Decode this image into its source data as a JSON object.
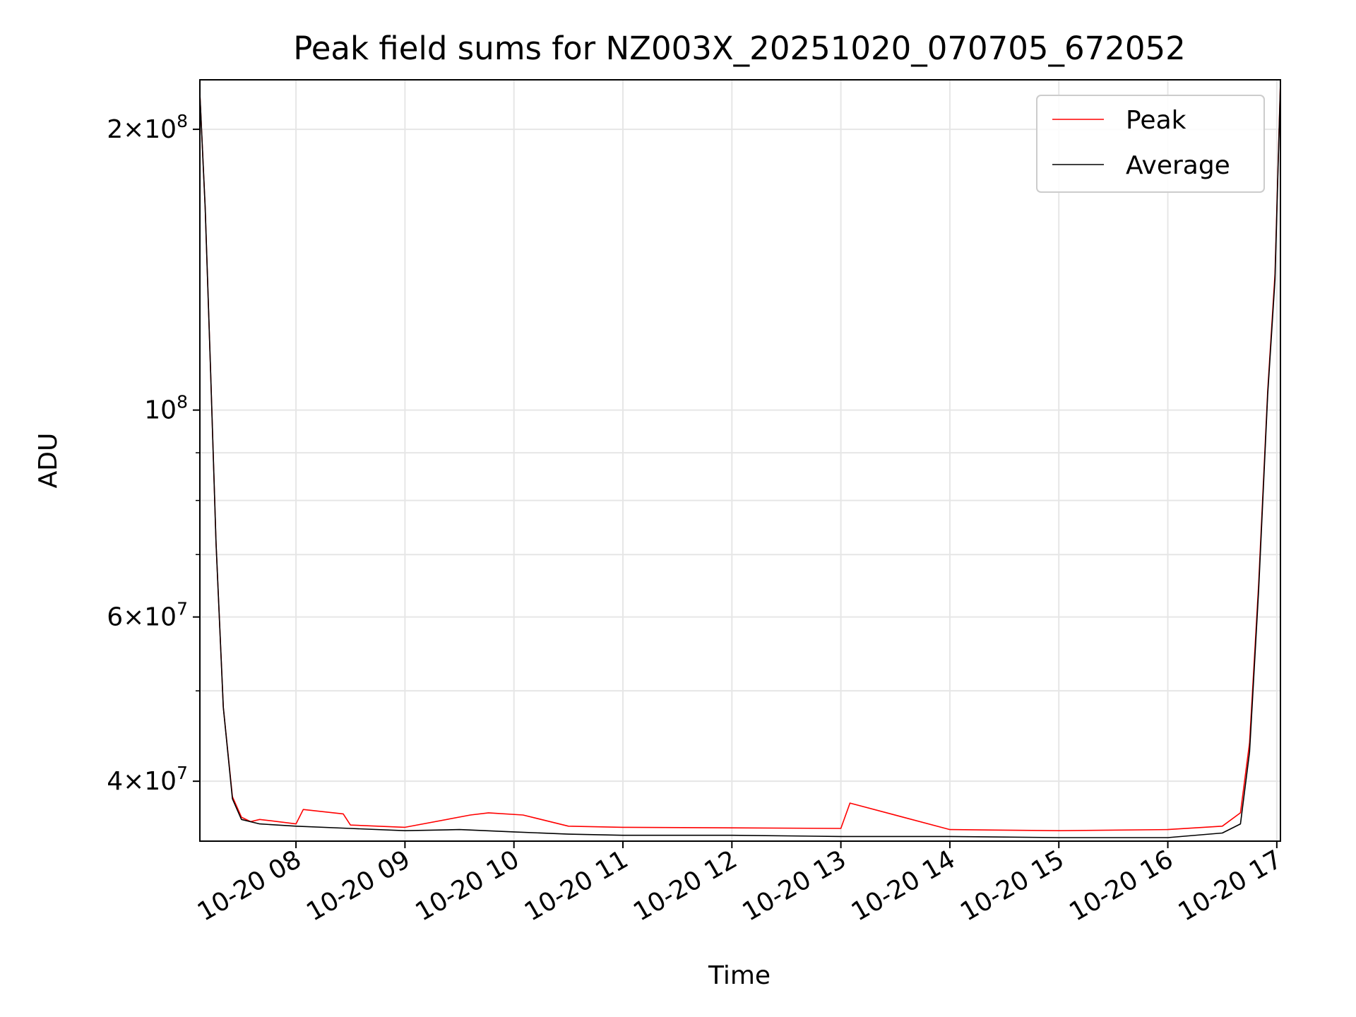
{
  "chart_data": {
    "type": "line",
    "title": "Peak field sums for NZ003X_20251020_070705_672052",
    "xlabel": "Time",
    "ylabel": "ADU",
    "x_type": "datetime",
    "xlim": [
      "2025-10-20T07:07:05",
      "2025-10-20T17:02:00"
    ],
    "ylim": [
      34500000,
      226000000
    ],
    "y_scale": "log",
    "grid": true,
    "legend_position": "top-right",
    "x_ticks": [
      {
        "value": "2025-10-20T08:00",
        "label": "10-20 08"
      },
      {
        "value": "2025-10-20T09:00",
        "label": "10-20 09"
      },
      {
        "value": "2025-10-20T10:00",
        "label": "10-20 10"
      },
      {
        "value": "2025-10-20T11:00",
        "label": "10-20 11"
      },
      {
        "value": "2025-10-20T12:00",
        "label": "10-20 12"
      },
      {
        "value": "2025-10-20T13:00",
        "label": "10-20 13"
      },
      {
        "value": "2025-10-20T14:00",
        "label": "10-20 14"
      },
      {
        "value": "2025-10-20T15:00",
        "label": "10-20 15"
      },
      {
        "value": "2025-10-20T16:00",
        "label": "10-20 16"
      },
      {
        "value": "2025-10-20T17:00",
        "label": "10-20 17"
      }
    ],
    "y_ticks": [
      {
        "value": 40000000,
        "base": "4",
        "exp": "7"
      },
      {
        "value": 60000000,
        "base": "6",
        "exp": "7"
      },
      {
        "value": 100000000,
        "base": "",
        "exp": "8"
      },
      {
        "value": 200000000,
        "base": "2",
        "exp": "8"
      }
    ],
    "y_minor_ticks": [
      50000000,
      70000000,
      80000000,
      90000000
    ],
    "series": [
      {
        "name": "Peak",
        "color": "#ff0000",
        "x": [
          "2025-10-20T07:07",
          "2025-10-20T07:10",
          "2025-10-20T07:13",
          "2025-10-20T07:16",
          "2025-10-20T07:20",
          "2025-10-20T07:25",
          "2025-10-20T07:30",
          "2025-10-20T07:35",
          "2025-10-20T07:40",
          "2025-10-20T07:45",
          "2025-10-20T08:00",
          "2025-10-20T08:04",
          "2025-10-20T08:30",
          "2025-10-20T08:26",
          "2025-10-20T09:00",
          "2025-10-20T09:36",
          "2025-10-20T09:46",
          "2025-10-20T10:05",
          "2025-10-20T10:30",
          "2025-10-20T11:00",
          "2025-10-20T12:00",
          "2025-10-20T13:00",
          "2025-10-20T13:05",
          "2025-10-20T14:00",
          "2025-10-20T15:00",
          "2025-10-20T16:00",
          "2025-10-20T16:30",
          "2025-10-20T16:40",
          "2025-10-20T16:45",
          "2025-10-20T16:50",
          "2025-10-20T16:55",
          "2025-10-20T16:59",
          "2025-10-20T17:02"
        ],
        "y": [
          220000000,
          165000000,
          110000000,
          72000000,
          48000000,
          38500000,
          36600000,
          36200000,
          36400000,
          36300000,
          36000000,
          37300000,
          35900000,
          36900000,
          35700000,
          36800000,
          37000000,
          36800000,
          35800000,
          35700000,
          35650000,
          35600000,
          37900000,
          35500000,
          35400000,
          35500000,
          35800000,
          37000000,
          44000000,
          65000000,
          105000000,
          140000000,
          225000000
        ]
      },
      {
        "name": "Average",
        "color": "#000000",
        "x": [
          "2025-10-20T07:07",
          "2025-10-20T07:10",
          "2025-10-20T07:13",
          "2025-10-20T07:16",
          "2025-10-20T07:20",
          "2025-10-20T07:25",
          "2025-10-20T07:30",
          "2025-10-20T07:40",
          "2025-10-20T08:00",
          "2025-10-20T08:30",
          "2025-10-20T09:00",
          "2025-10-20T09:30",
          "2025-10-20T10:00",
          "2025-10-20T10:30",
          "2025-10-20T11:00",
          "2025-10-20T12:00",
          "2025-10-20T13:00",
          "2025-10-20T14:00",
          "2025-10-20T15:00",
          "2025-10-20T16:00",
          "2025-10-20T16:30",
          "2025-10-20T16:40",
          "2025-10-20T16:45",
          "2025-10-20T16:50",
          "2025-10-20T16:55",
          "2025-10-20T16:59",
          "2025-10-20T17:02"
        ],
        "y": [
          220000000,
          165000000,
          110000000,
          72000000,
          48000000,
          38300000,
          36400000,
          36000000,
          35800000,
          35600000,
          35400000,
          35500000,
          35300000,
          35100000,
          35000000,
          35000000,
          34900000,
          34900000,
          34800000,
          34800000,
          35200000,
          36000000,
          43000000,
          64000000,
          104000000,
          138000000,
          224000000
        ]
      }
    ]
  }
}
